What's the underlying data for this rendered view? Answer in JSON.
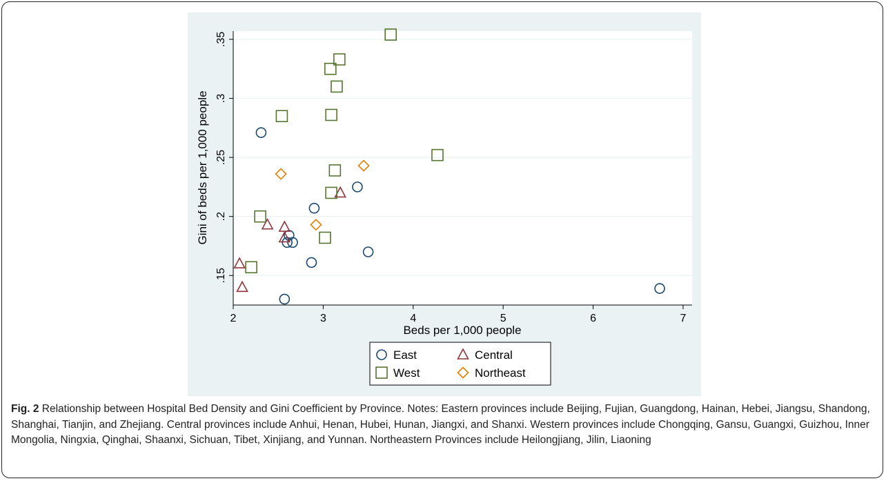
{
  "chart_data": {
    "type": "scatter",
    "xlabel": "Beds per 1,000 people",
    "ylabel": "Gini of beds per 1,000 people",
    "xlim": [
      2,
      7.1
    ],
    "ylim": [
      0.125,
      0.357
    ],
    "x_ticks": [
      2,
      3,
      4,
      5,
      6,
      7
    ],
    "x_tick_labels": [
      "2",
      "3",
      "4",
      "5",
      "6",
      "7"
    ],
    "y_ticks": [
      0.15,
      0.2,
      0.25,
      0.3,
      0.35
    ],
    "y_tick_labels": [
      ".15",
      ".2",
      ".25",
      ".3",
      ".35"
    ],
    "grid": "horizontal",
    "legend_position": "bottom",
    "series": [
      {
        "name": "East",
        "marker": "circle",
        "color": "#1a476f",
        "points": [
          [
            2.31,
            0.271
          ],
          [
            2.57,
            0.13
          ],
          [
            2.6,
            0.178
          ],
          [
            2.62,
            0.184
          ],
          [
            2.66,
            0.178
          ],
          [
            2.87,
            0.161
          ],
          [
            2.9,
            0.207
          ],
          [
            3.38,
            0.225
          ],
          [
            3.5,
            0.17
          ],
          [
            6.74,
            0.139
          ]
        ]
      },
      {
        "name": "Central",
        "marker": "triangle",
        "color": "#90353b",
        "points": [
          [
            2.07,
            0.16
          ],
          [
            2.1,
            0.14
          ],
          [
            2.38,
            0.193
          ],
          [
            2.57,
            0.191
          ],
          [
            2.57,
            0.182
          ],
          [
            3.19,
            0.22
          ]
        ]
      },
      {
        "name": "West",
        "marker": "square",
        "color": "#55752f",
        "points": [
          [
            2.2,
            0.157
          ],
          [
            2.3,
            0.2
          ],
          [
            2.54,
            0.285
          ],
          [
            3.02,
            0.182
          ],
          [
            3.08,
            0.325
          ],
          [
            3.09,
            0.22
          ],
          [
            3.09,
            0.286
          ],
          [
            3.13,
            0.239
          ],
          [
            3.15,
            0.31
          ],
          [
            3.18,
            0.333
          ],
          [
            3.75,
            0.354
          ],
          [
            4.27,
            0.252
          ]
        ]
      },
      {
        "name": "Northeast",
        "marker": "diamond",
        "color": "#e37e00",
        "points": [
          [
            2.53,
            0.236
          ],
          [
            2.92,
            0.193
          ],
          [
            3.45,
            0.243
          ]
        ]
      }
    ]
  },
  "caption": {
    "label": "Fig. 2",
    "text": " Relationship between Hospital Bed Density and Gini Coefficient by Province. Notes: Eastern provinces include Beijing, Fujian, Guangdong, Hainan, Hebei, Jiangsu, Shandong, Shanghai, Tianjin, and Zhejiang. Central provinces include Anhui, Henan, Hubei, Hunan, Jiangxi, and Shanxi. Western provinces include Chongqing, Gansu, Guangxi, Guizhou, Inner Mongolia, Ningxia, Qinghai, Shaanxi, Sichuan, Tibet, Xinjiang, and Yunnan. Northeastern Provinces include Heilongjiang, Jilin, Liaoning"
  }
}
